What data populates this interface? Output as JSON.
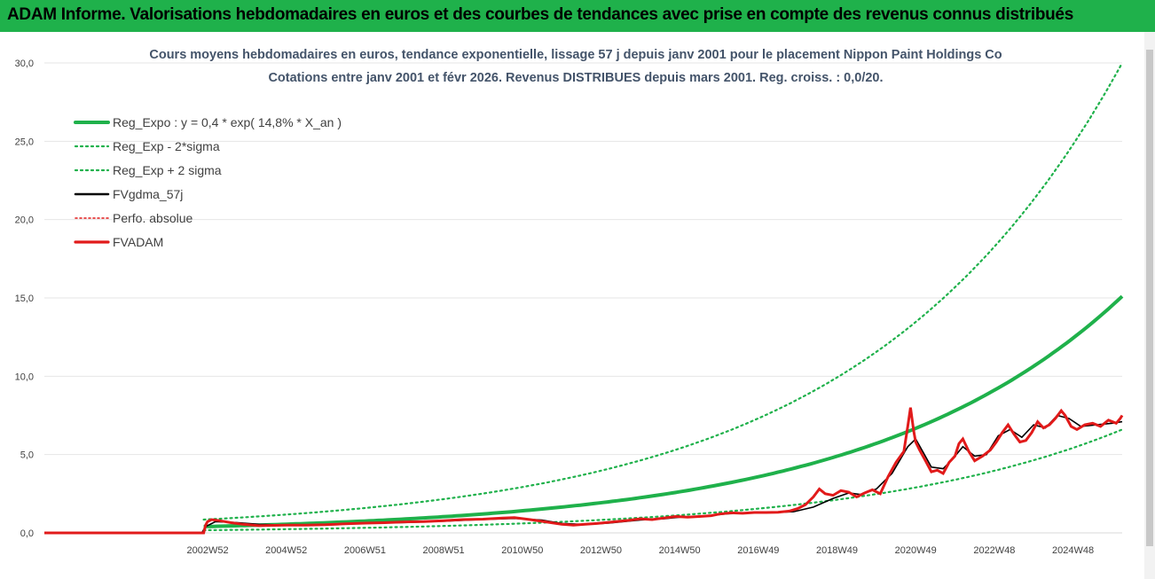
{
  "header": {
    "title": "ADAM Informe. Valorisations hebdomadaires en euros et des courbes de tendances avec prise en compte des revenus connus distribués"
  },
  "chart_data": {
    "type": "line",
    "title_line1": "Cours moyens hebdomadaires en euros, tendance exponentielle, lissage 57 j depuis janv 2001 pour le placement Nippon Paint Holdings Co",
    "title_line2": "Cotations entre janv 2001 et févr 2026. Revenus DISTRIBUES depuis mars 2001. Reg. croiss. : 0,0/20.",
    "ylim": [
      0,
      30
    ],
    "y_ticks": [
      "0,0",
      "5,0",
      "10,0",
      "15,0",
      "20,0",
      "25,0",
      "30,0"
    ],
    "x_range_years": [
      1998.85,
      2026.25
    ],
    "x_tick_labels": [
      "2002W52",
      "2004W52",
      "2006W51",
      "2008W51",
      "2010W50",
      "2012W50",
      "2014W50",
      "2016W49",
      "2018W49",
      "2020W49",
      "2022W48",
      "2024W48"
    ],
    "x_tick_years": [
      2003.0,
      2005.0,
      2007.0,
      2009.0,
      2011.0,
      2013.0,
      2015.0,
      2017.0,
      2019.0,
      2021.0,
      2023.0,
      2025.0
    ],
    "regression": {
      "label": "Reg_Expo : y = 0,4 * exp( 14,8% *  X_an )",
      "a": 0.4,
      "rate": 0.148,
      "start_year": 2002.9,
      "end_year": 2026.25,
      "value_start": 0.4,
      "value_end": 15.1
    },
    "band_low": {
      "label": "Reg_Exp - 2*sigma",
      "value_start": 0.17,
      "value_end": 6.6
    },
    "band_high": {
      "label": "Reg_Exp + 2 sigma",
      "value_start": 0.85,
      "value_end": 30.0
    },
    "smoothed": {
      "label": "FVgdma_57j",
      "points": [
        [
          1998.85,
          0
        ],
        [
          2002.85,
          0
        ],
        [
          2002.95,
          0.4
        ],
        [
          2003.2,
          0.72
        ],
        [
          2003.7,
          0.66
        ],
        [
          2004.3,
          0.55
        ],
        [
          2005.0,
          0.5
        ],
        [
          2006.0,
          0.52
        ],
        [
          2007.0,
          0.62
        ],
        [
          2008.0,
          0.66
        ],
        [
          2009.0,
          0.75
        ],
        [
          2010.0,
          0.86
        ],
        [
          2010.8,
          0.92
        ],
        [
          2011.5,
          0.82
        ],
        [
          2012.0,
          0.6
        ],
        [
          2012.6,
          0.54
        ],
        [
          2013.2,
          0.62
        ],
        [
          2014.0,
          0.82
        ],
        [
          2014.6,
          0.9
        ],
        [
          2015.0,
          1.0
        ],
        [
          2015.6,
          1.06
        ],
        [
          2016.2,
          1.22
        ],
        [
          2016.8,
          1.28
        ],
        [
          2017.4,
          1.3
        ],
        [
          2017.9,
          1.35
        ],
        [
          2018.4,
          1.65
        ],
        [
          2018.9,
          2.2
        ],
        [
          2019.3,
          2.55
        ],
        [
          2019.6,
          2.45
        ],
        [
          2020.0,
          2.8
        ],
        [
          2020.4,
          3.8
        ],
        [
          2020.8,
          5.5
        ],
        [
          2021.0,
          6.0
        ],
        [
          2021.2,
          5.1
        ],
        [
          2021.4,
          4.2
        ],
        [
          2021.7,
          4.1
        ],
        [
          2021.9,
          4.6
        ],
        [
          2022.2,
          5.5
        ],
        [
          2022.5,
          4.9
        ],
        [
          2022.8,
          5.0
        ],
        [
          2023.1,
          6.2
        ],
        [
          2023.4,
          6.6
        ],
        [
          2023.7,
          6.1
        ],
        [
          2024.0,
          6.9
        ],
        [
          2024.3,
          6.7
        ],
        [
          2024.6,
          7.5
        ],
        [
          2024.9,
          7.3
        ],
        [
          2025.2,
          6.8
        ],
        [
          2025.6,
          6.9
        ],
        [
          2026.0,
          7.0
        ],
        [
          2026.25,
          7.1
        ]
      ]
    },
    "perf_abs": {
      "label": "Perfo. absolue"
    },
    "fvadam": {
      "label": "FVADAM",
      "points": [
        [
          1998.85,
          0
        ],
        [
          2002.9,
          0
        ],
        [
          2002.95,
          0.5
        ],
        [
          2003.0,
          0.72
        ],
        [
          2003.1,
          0.85
        ],
        [
          2003.3,
          0.78
        ],
        [
          2003.6,
          0.65
        ],
        [
          2003.9,
          0.55
        ],
        [
          2004.3,
          0.46
        ],
        [
          2004.7,
          0.48
        ],
        [
          2005.0,
          0.5
        ],
        [
          2005.5,
          0.5
        ],
        [
          2006.0,
          0.52
        ],
        [
          2006.5,
          0.58
        ],
        [
          2007.0,
          0.62
        ],
        [
          2007.5,
          0.65
        ],
        [
          2008.0,
          0.7
        ],
        [
          2008.5,
          0.72
        ],
        [
          2009.0,
          0.78
        ],
        [
          2009.5,
          0.85
        ],
        [
          2010.0,
          0.88
        ],
        [
          2010.5,
          0.95
        ],
        [
          2010.8,
          0.98
        ],
        [
          2011.2,
          0.85
        ],
        [
          2011.6,
          0.7
        ],
        [
          2012.0,
          0.55
        ],
        [
          2012.3,
          0.5
        ],
        [
          2012.6,
          0.55
        ],
        [
          2012.9,
          0.6
        ],
        [
          2013.3,
          0.7
        ],
        [
          2013.7,
          0.8
        ],
        [
          2014.0,
          0.9
        ],
        [
          2014.3,
          0.85
        ],
        [
          2014.6,
          0.95
        ],
        [
          2014.9,
          1.05
        ],
        [
          2015.2,
          1.0
        ],
        [
          2015.5,
          1.05
        ],
        [
          2015.8,
          1.1
        ],
        [
          2016.0,
          1.2
        ],
        [
          2016.3,
          1.28
        ],
        [
          2016.6,
          1.25
        ],
        [
          2016.9,
          1.3
        ],
        [
          2017.2,
          1.3
        ],
        [
          2017.5,
          1.32
        ],
        [
          2017.8,
          1.4
        ],
        [
          2018.0,
          1.55
        ],
        [
          2018.2,
          1.8
        ],
        [
          2018.4,
          2.3
        ],
        [
          2018.55,
          2.8
        ],
        [
          2018.7,
          2.5
        ],
        [
          2018.9,
          2.4
        ],
        [
          2019.1,
          2.7
        ],
        [
          2019.3,
          2.6
        ],
        [
          2019.5,
          2.3
        ],
        [
          2019.7,
          2.55
        ],
        [
          2019.9,
          2.75
        ],
        [
          2020.1,
          2.5
        ],
        [
          2020.3,
          3.6
        ],
        [
          2020.5,
          4.5
        ],
        [
          2020.7,
          5.2
        ],
        [
          2020.8,
          6.8
        ],
        [
          2020.87,
          8.0
        ],
        [
          2020.95,
          6.5
        ],
        [
          2021.0,
          5.8
        ],
        [
          2021.1,
          5.3
        ],
        [
          2021.25,
          4.6
        ],
        [
          2021.4,
          3.9
        ],
        [
          2021.55,
          4.0
        ],
        [
          2021.7,
          3.8
        ],
        [
          2021.85,
          4.5
        ],
        [
          2022.0,
          4.9
        ],
        [
          2022.1,
          5.7
        ],
        [
          2022.2,
          6.0
        ],
        [
          2022.35,
          5.2
        ],
        [
          2022.5,
          4.6
        ],
        [
          2022.7,
          4.9
        ],
        [
          2022.9,
          5.3
        ],
        [
          2023.05,
          5.8
        ],
        [
          2023.2,
          6.4
        ],
        [
          2023.35,
          6.9
        ],
        [
          2023.5,
          6.3
        ],
        [
          2023.65,
          5.8
        ],
        [
          2023.8,
          5.9
        ],
        [
          2023.95,
          6.4
        ],
        [
          2024.1,
          7.1
        ],
        [
          2024.25,
          6.7
        ],
        [
          2024.4,
          6.9
        ],
        [
          2024.55,
          7.3
        ],
        [
          2024.7,
          7.8
        ],
        [
          2024.8,
          7.5
        ],
        [
          2024.95,
          6.8
        ],
        [
          2025.1,
          6.6
        ],
        [
          2025.3,
          6.9
        ],
        [
          2025.5,
          7.0
        ],
        [
          2025.7,
          6.8
        ],
        [
          2025.9,
          7.2
        ],
        [
          2026.1,
          7.0
        ],
        [
          2026.2,
          7.3
        ],
        [
          2026.25,
          7.5
        ]
      ]
    }
  }
}
